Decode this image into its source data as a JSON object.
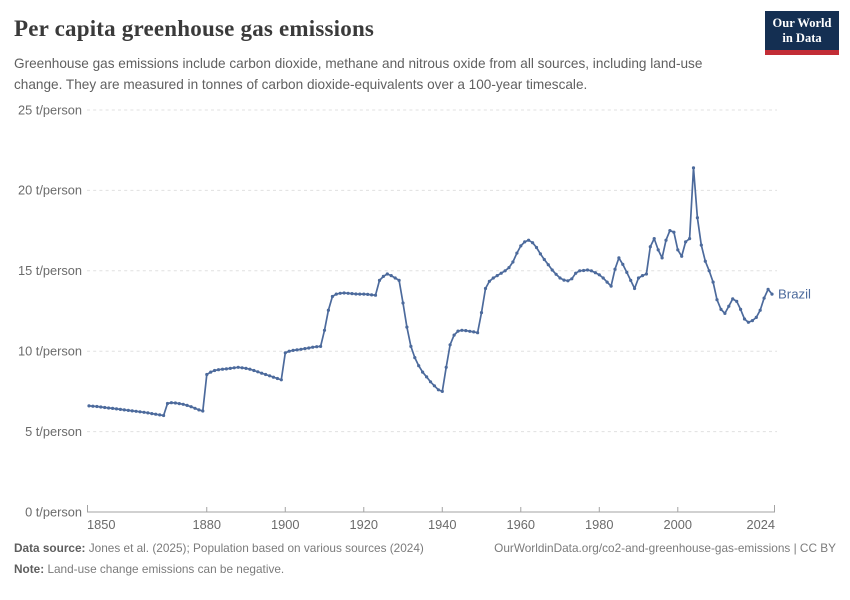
{
  "header": {
    "title": "Per capita greenhouse gas emissions",
    "subtitle": "Greenhouse gas emissions include carbon dioxide, methane and nitrous oxide from all sources, including land-use change. They are measured in tonnes of carbon dioxide-equivalents over a 100-year timescale.",
    "logo": {
      "line1": "Our World",
      "line2": "in Data",
      "bg_color": "#142f52",
      "bar_color": "#c22d36"
    }
  },
  "chart_data": {
    "type": "line",
    "title": "Per capita greenhouse gas emissions",
    "entity": "Brazil",
    "unit": "t/person",
    "line_color": "#4c6a9c",
    "grid": "dashed horizontal gridlines",
    "legend_position": "end-of-line label",
    "x_range": [
      1850,
      2024
    ],
    "y_range": [
      0,
      25
    ],
    "x_ticks": [
      1850,
      1880,
      1900,
      1920,
      1940,
      1960,
      1980,
      2000,
      2024
    ],
    "y_ticks": [
      {
        "value": 0,
        "label": "0 t/person"
      },
      {
        "value": 5,
        "label": "5 t/person"
      },
      {
        "value": 10,
        "label": "10 t/person"
      },
      {
        "value": 15,
        "label": "15 t/person"
      },
      {
        "value": 20,
        "label": "20 t/person"
      },
      {
        "value": 25,
        "label": "25 t/person"
      }
    ],
    "series": [
      {
        "name": "Brazil",
        "start_year": 1850,
        "step": 1,
        "values": [
          6.6,
          6.58,
          6.56,
          6.53,
          6.5,
          6.47,
          6.44,
          6.41,
          6.38,
          6.35,
          6.32,
          6.29,
          6.26,
          6.23,
          6.2,
          6.16,
          6.12,
          6.08,
          6.04,
          6.0,
          6.75,
          6.8,
          6.78,
          6.74,
          6.7,
          6.63,
          6.55,
          6.45,
          6.35,
          6.28,
          8.55,
          8.7,
          8.8,
          8.85,
          8.88,
          8.9,
          8.93,
          8.97,
          9.0,
          8.97,
          8.93,
          8.88,
          8.8,
          8.72,
          8.63,
          8.55,
          8.47,
          8.38,
          8.3,
          8.22,
          9.9,
          10.0,
          10.05,
          10.08,
          10.12,
          10.16,
          10.2,
          10.25,
          10.28,
          10.3,
          11.3,
          12.55,
          13.4,
          13.55,
          13.6,
          13.62,
          13.6,
          13.58,
          13.56,
          13.55,
          13.55,
          13.53,
          13.5,
          13.48,
          14.4,
          14.65,
          14.8,
          14.7,
          14.55,
          14.4,
          13.0,
          11.5,
          10.3,
          9.6,
          9.1,
          8.7,
          8.4,
          8.1,
          7.85,
          7.6,
          7.5,
          9.0,
          10.4,
          11.0,
          11.25,
          11.3,
          11.28,
          11.24,
          11.2,
          11.15,
          12.4,
          13.9,
          14.35,
          14.55,
          14.7,
          14.85,
          15.0,
          15.2,
          15.55,
          16.1,
          16.55,
          16.8,
          16.9,
          16.75,
          16.45,
          16.05,
          15.7,
          15.38,
          15.05,
          14.78,
          14.55,
          14.42,
          14.38,
          14.5,
          14.85,
          15.0,
          15.02,
          15.05,
          15.0,
          14.88,
          14.75,
          14.55,
          14.3,
          14.05,
          15.1,
          15.8,
          15.4,
          14.9,
          14.4,
          13.9,
          14.55,
          14.7,
          14.8,
          16.5,
          17.0,
          16.3,
          15.8,
          16.9,
          17.5,
          17.4,
          16.3,
          15.9,
          16.8,
          17.0,
          21.4,
          18.3,
          16.6,
          15.6,
          15.0,
          14.3,
          13.2,
          12.6,
          12.35,
          12.8,
          13.25,
          13.1,
          12.6,
          12.0,
          11.8,
          11.9,
          12.1,
          12.55,
          13.3,
          13.85,
          13.55
        ]
      }
    ]
  },
  "footer": {
    "source_label": "Data source:",
    "source_text": "Jones et al. (2025); Population based on various sources (2024)",
    "link_text": "OurWorldinData.org/co2-and-greenhouse-gas-emissions | CC BY",
    "note_label": "Note:",
    "note_text": "Land-use change emissions can be negative."
  },
  "style_colors": {
    "gridline": "#e0e0e0",
    "axis": "#a3a3a3",
    "tick_label": "#6b6b6b"
  }
}
